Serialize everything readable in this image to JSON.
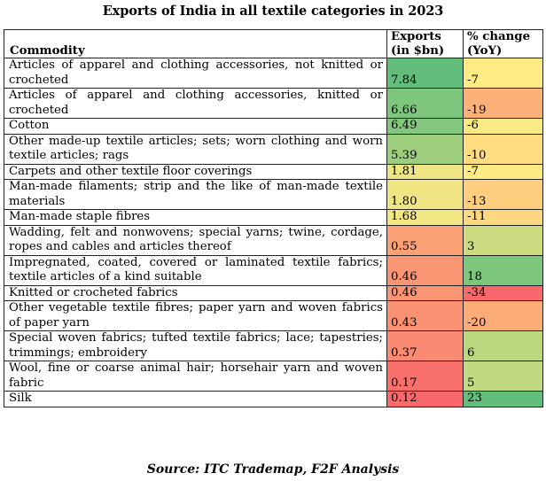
{
  "title": "Exports of India in all textile categories in 2023",
  "source": "Source: ITC Trademap, F2F Analysis",
  "colors": {
    "green": "#63BE7B",
    "yellow": "#FFEB84",
    "red": "#F8696B"
  },
  "chart_data": {
    "type": "table",
    "title": "Exports of India in all textile categories in 2023",
    "columns": [
      "Commodity",
      "Exports (in $bn)",
      "% change (YoY)"
    ],
    "header": {
      "commodity": "Commodity",
      "exports_l1": "Exports",
      "exports_l2": "(in $bn)",
      "change_l1": "% change",
      "change_l2": "(YoY)"
    },
    "rows": [
      {
        "commodity": "Articles of apparel and clothing accessories, not knitted or crocheted",
        "exports": "7.84",
        "change": "-7"
      },
      {
        "commodity": "Articles of apparel and clothing accessories, knitted or crocheted",
        "exports": "6.66",
        "change": "-19"
      },
      {
        "commodity": "Cotton",
        "exports": "6.49",
        "change": "-6"
      },
      {
        "commodity": "Other made-up textile articles; sets; worn clothing and worn textile articles; rags",
        "exports": "5.39",
        "change": "-10"
      },
      {
        "commodity": "Carpets and other textile floor coverings",
        "exports": "1.81",
        "change": "-7"
      },
      {
        "commodity": "Man-made filaments; strip and the like of man-made textile materials",
        "exports": "1.80",
        "change": "-13"
      },
      {
        "commodity": "Man-made staple fibres",
        "exports": "1.68",
        "change": "-11"
      },
      {
        "commodity": "Wadding, felt and nonwovens; special yarns; twine, cordage, ropes and cables and articles thereof",
        "exports": "0.55",
        "change": "3"
      },
      {
        "commodity": "Impregnated, coated, covered or laminated textile fabrics; textile articles of a kind suitable",
        "exports": "0.46",
        "change": "18"
      },
      {
        "commodity": "Knitted or crocheted fabrics",
        "exports": "0.46",
        "change": "-34"
      },
      {
        "commodity": "Other vegetable textile fibres; paper yarn and woven fabrics of paper yarn",
        "exports": "0.43",
        "change": "-20"
      },
      {
        "commodity": "Special woven fabrics; tufted textile fabrics; lace; tapestries; trimmings; embroidery",
        "exports": "0.37",
        "change": "6"
      },
      {
        "commodity": "Wool, fine or coarse animal hair; horsehair yarn and woven fabric",
        "exports": "0.17",
        "change": "5"
      },
      {
        "commodity": "Silk",
        "exports": "0.12",
        "change": "23"
      }
    ]
  }
}
